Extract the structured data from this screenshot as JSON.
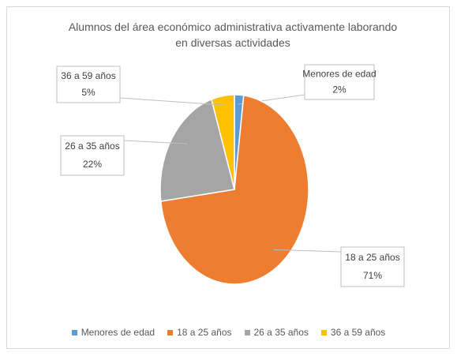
{
  "chart_data": {
    "type": "pie",
    "title": "Alumnos del área económico administrativa activamente laborando en diversas actividades",
    "categories": [
      "Menores de edad",
      "18 a 25 años",
      "26 a 35 años",
      "36 a 59 años"
    ],
    "values": [
      2,
      71,
      22,
      5
    ],
    "value_labels": [
      "2%",
      "71%",
      "22%",
      "5%"
    ],
    "colors": [
      "#5b9bd5",
      "#ed7d31",
      "#a5a5a5",
      "#ffc000"
    ],
    "legend": "bottom"
  }
}
